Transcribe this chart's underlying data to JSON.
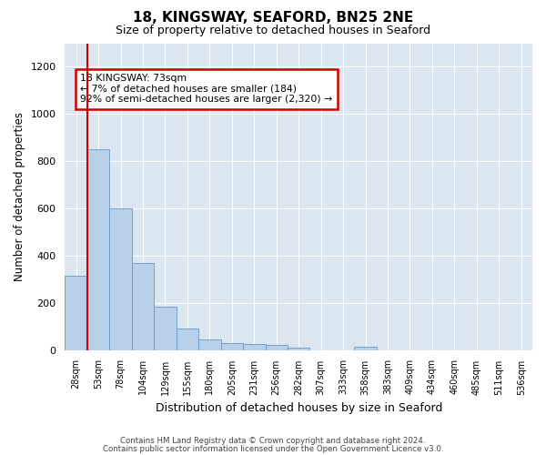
{
  "title": "18, KINGSWAY, SEAFORD, BN25 2NE",
  "subtitle": "Size of property relative to detached houses in Seaford",
  "xlabel": "Distribution of detached houses by size in Seaford",
  "ylabel": "Number of detached properties",
  "bar_values": [
    315,
    850,
    600,
    370,
    185,
    90,
    45,
    30,
    25,
    20,
    10,
    0,
    0,
    15,
    0,
    0,
    0,
    0,
    0,
    0,
    0
  ],
  "bar_labels": [
    "28sqm",
    "53sqm",
    "78sqm",
    "104sqm",
    "129sqm",
    "155sqm",
    "180sqm",
    "205sqm",
    "231sqm",
    "256sqm",
    "282sqm",
    "307sqm",
    "333sqm",
    "358sqm",
    "383sqm",
    "409sqm",
    "434sqm",
    "460sqm",
    "485sqm",
    "511sqm",
    "536sqm"
  ],
  "bar_color": "#b8d0e8",
  "bar_edge_color": "#6699cc",
  "marker_color": "#cc0000",
  "annotation_text": "18 KINGSWAY: 73sqm\n← 7% of detached houses are smaller (184)\n92% of semi-detached houses are larger (2,320) →",
  "annotation_box_color": "#ffffff",
  "annotation_box_edge": "#cc0000",
  "ylim": [
    0,
    1300
  ],
  "yticks": [
    0,
    200,
    400,
    600,
    800,
    1000,
    1200
  ],
  "background_color": "#dce6f0",
  "footer_line1": "Contains HM Land Registry data © Crown copyright and database right 2024.",
  "footer_line2": "Contains public sector information licensed under the Open Government Licence v3.0."
}
